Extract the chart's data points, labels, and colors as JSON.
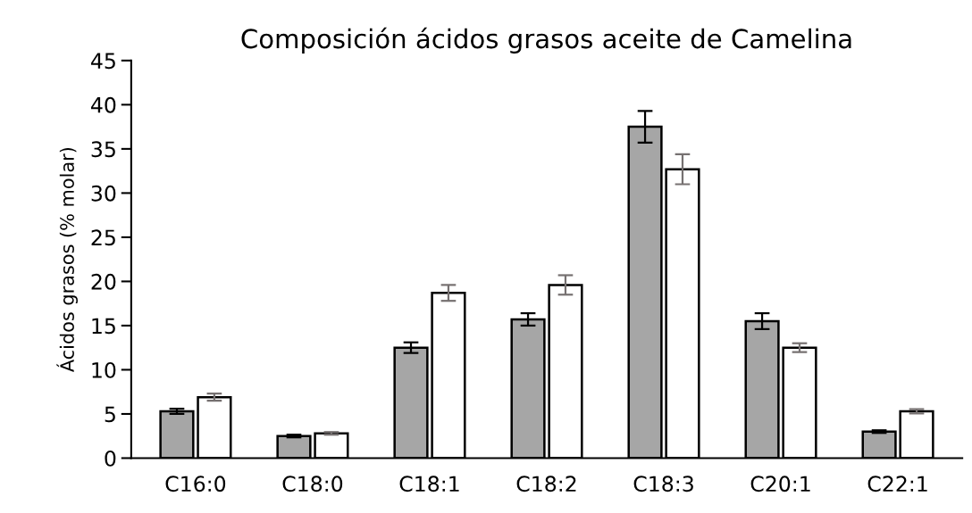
{
  "chart_data": {
    "type": "bar",
    "title": "Composición ácidos grasos aceite de Camelina",
    "ylabel": "Ácidos grasos (% molar)",
    "categories": [
      "C16:0",
      "C18:0",
      "C18:1",
      "C18:2",
      "C18:3",
      "C20:1",
      "C22:1"
    ],
    "series": [
      {
        "color": "#a6a6a6",
        "values": [
          5.3,
          2.5,
          12.5,
          15.7,
          37.5,
          15.5,
          3.0
        ],
        "errors": [
          0.3,
          0.15,
          0.6,
          0.7,
          1.8,
          0.9,
          0.15
        ]
      },
      {
        "color": "#ffffff",
        "values": [
          6.9,
          2.8,
          18.7,
          19.6,
          32.7,
          12.5,
          5.3
        ],
        "errors": [
          0.4,
          0.15,
          0.9,
          1.1,
          1.7,
          0.5,
          0.25
        ]
      }
    ],
    "ylim": [
      0,
      45
    ],
    "yticks": [
      0,
      5,
      10,
      15,
      20,
      25,
      30,
      35,
      40,
      45
    ],
    "grid": false,
    "legend": false
  }
}
